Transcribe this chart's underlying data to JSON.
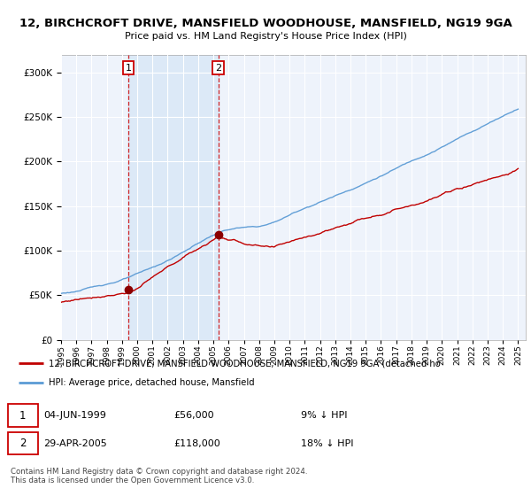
{
  "title": "12, BIRCHCROFT DRIVE, MANSFIELD WOODHOUSE, MANSFIELD, NG19 9GA",
  "subtitle": "Price paid vs. HM Land Registry's House Price Index (HPI)",
  "legend_line1": "12, BIRCHCROFT DRIVE, MANSFIELD WOODHOUSE, MANSFIELD, NG19 9GA (detached ho",
  "legend_line2": "HPI: Average price, detached house, Mansfield",
  "footnote": "Contains HM Land Registry data © Crown copyright and database right 2024.\nThis data is licensed under the Open Government Licence v3.0.",
  "transaction1": {
    "label": "1",
    "date": "04-JUN-1999",
    "price": 56000,
    "hpi_diff": "9% ↓ HPI"
  },
  "transaction2": {
    "label": "2",
    "date": "29-APR-2005",
    "price": 118000,
    "hpi_diff": "18% ↓ HPI"
  },
  "hpi_color": "#5b9bd5",
  "price_color": "#c00000",
  "marker_color": "#8b0000",
  "vline_color": "#cc0000",
  "shade_color": "#dce9f7",
  "background_color": "#eef3fb",
  "ylim": [
    0,
    320000
  ],
  "t1_year": 1999.42,
  "t2_year": 2005.33,
  "t1_price": 56000,
  "t2_price": 118000
}
